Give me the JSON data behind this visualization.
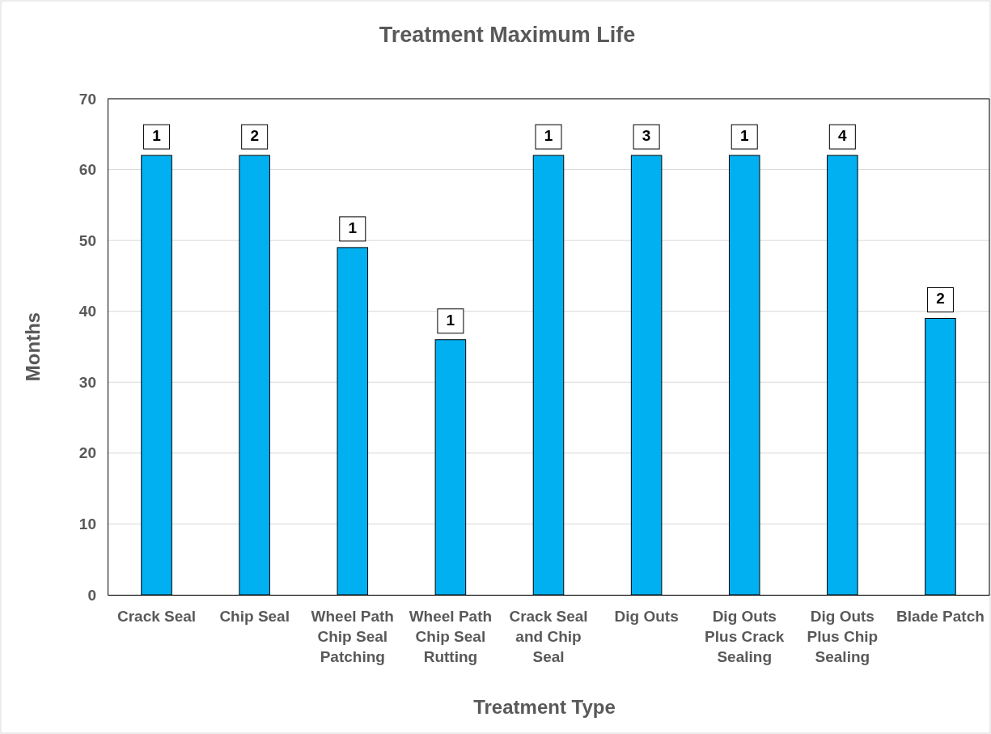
{
  "chart_data": {
    "type": "bar",
    "title": "Treatment Maximum Life",
    "xlabel": "Treatment Type",
    "ylabel": "Months",
    "categories": [
      "Crack Seal",
      "Chip Seal",
      "Wheel Path Chip Seal Patching",
      "Wheel Path Chip Seal Rutting",
      "Crack Seal and Chip Seal",
      "Dig Outs",
      "Dig Outs Plus Crack Sealing",
      "Dig Outs Plus Chip Sealing",
      "Blade Patch"
    ],
    "values": [
      62,
      62,
      49,
      36,
      62,
      62,
      62,
      62,
      39
    ],
    "annotations": [
      {
        "text": "1",
        "x": "Crack Seal",
        "y": 62
      },
      {
        "text": "2",
        "x": "Chip Seal",
        "y": 62
      },
      {
        "text": "1",
        "x": "Wheel Path Chip Seal Patching",
        "y": 49
      },
      {
        "text": "1",
        "x": "Wheel Path Chip Seal Rutting",
        "y": 36
      },
      {
        "text": "1",
        "x": "Crack Seal and Chip Seal",
        "y": 62
      },
      {
        "text": "3",
        "x": "Dig Outs",
        "y": 62
      },
      {
        "text": "1",
        "x": "Dig Outs Plus Crack Sealing",
        "y": 62
      },
      {
        "text": "4",
        "x": "Dig Outs Plus Chip Sealing",
        "y": 62
      },
      {
        "text": "2",
        "x": "Blade Patch",
        "y": 39
      }
    ],
    "color": "#00b0f0",
    "ylim": [
      0,
      70
    ],
    "yticks": [
      0,
      10,
      20,
      30,
      40,
      50,
      60,
      70
    ],
    "grid": "y"
  }
}
